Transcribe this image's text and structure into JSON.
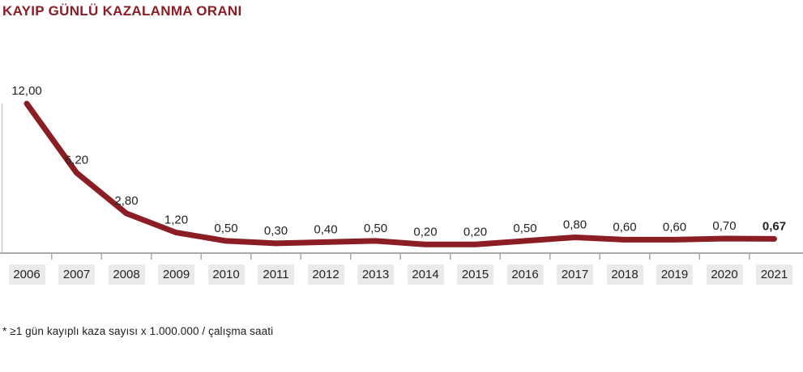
{
  "header": {
    "title": "KAYIP GÜNLÜ KAZALANMA ORANI"
  },
  "footnote": "* ≥1 gün kayıplı kaza sayısı x 1.000.000 / çalışma saati",
  "colors": {
    "line": "#8B1E24",
    "title": "#8B1E24",
    "axis": "#A9A9A9",
    "y_axis": "#C9C9CD",
    "year_box_bg": "#EAEAED",
    "value_label_text": "#262224",
    "year_text": "#242424"
  },
  "chart_data": {
    "type": "line",
    "title": "KAYIP GÜNLÜ KAZALANMA ORANI",
    "categories": [
      "2006",
      "2007",
      "2008",
      "2009",
      "2010",
      "2011",
      "2012",
      "2013",
      "2014",
      "2015",
      "2016",
      "2017",
      "2018",
      "2019",
      "2020",
      "2021"
    ],
    "values": [
      12.0,
      6.2,
      2.8,
      1.2,
      0.5,
      0.3,
      0.4,
      0.5,
      0.2,
      0.2,
      0.5,
      0.8,
      0.6,
      0.6,
      0.7,
      0.67
    ],
    "value_labels": [
      "12,00",
      "6,20",
      "2,80",
      "1,20",
      "0,50",
      "0,30",
      "0,40",
      "0,50",
      "0,20",
      "0,20",
      "0,50",
      "0,80",
      "0,60",
      "0,60",
      "0,70",
      "0,67"
    ],
    "bold_last_label": true,
    "xlabel": "",
    "ylabel": "",
    "ylim": [
      0,
      12
    ],
    "grid": false,
    "legend": "none",
    "annotations": [
      "* ≥1 gün kayıplı kaza sayısı x 1.000.000 / çalışma saati"
    ]
  }
}
